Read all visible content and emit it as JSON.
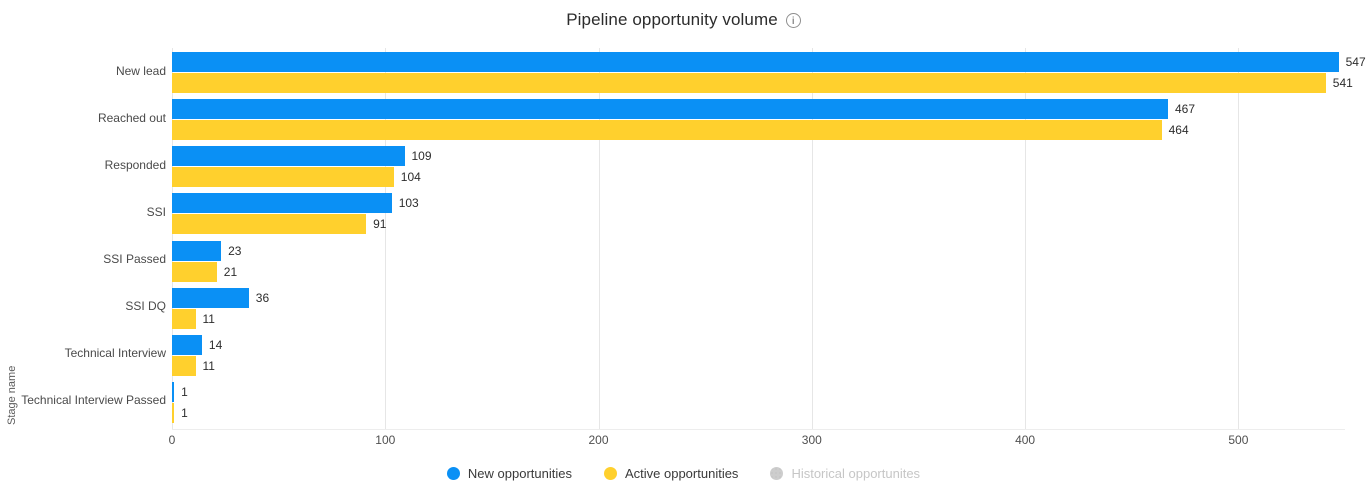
{
  "title": "Pipeline opportunity volume",
  "info_icon_glyph": "i",
  "y_axis_title": "Stage name",
  "chart_data": {
    "type": "bar",
    "orientation": "horizontal",
    "title": "Pipeline opportunity volume",
    "xlabel": "",
    "ylabel": "Stage name",
    "categories": [
      "New lead",
      "Reached out",
      "Responded",
      "SSI",
      "SSI Passed",
      "SSI DQ",
      "Technical Interview",
      "Technical Interview Passed"
    ],
    "series": [
      {
        "name": "New opportunities",
        "color": "#0a90f5",
        "disabled": false,
        "values": [
          547,
          467,
          109,
          103,
          23,
          36,
          14,
          1
        ]
      },
      {
        "name": "Active opportunities",
        "color": "#ffd02d",
        "disabled": false,
        "values": [
          541,
          464,
          104,
          91,
          21,
          11,
          11,
          1
        ]
      },
      {
        "name": "Historical opportunites",
        "color": "#cdcdcd",
        "disabled": true,
        "values": []
      }
    ],
    "data_labels": true,
    "xticks": [
      0,
      100,
      200,
      300,
      400,
      500
    ],
    "xlim": [
      0,
      550
    ],
    "grid": "vertical-only",
    "legend_position": "bottom-center"
  },
  "legend": {
    "items": [
      {
        "label": "New opportunities",
        "color": "#0a90f5",
        "enabled": true
      },
      {
        "label": "Active opportunities",
        "color": "#ffd02d",
        "enabled": true
      },
      {
        "label": "Historical opportunites",
        "color": "#cdcdcd",
        "enabled": false
      }
    ]
  },
  "colors": {
    "background": "#ffffff",
    "gridline": "#e6e6e6",
    "axis_text": "#4f4f4f",
    "value_text": "#2d2d2d",
    "title_text": "#2c2c2c"
  }
}
